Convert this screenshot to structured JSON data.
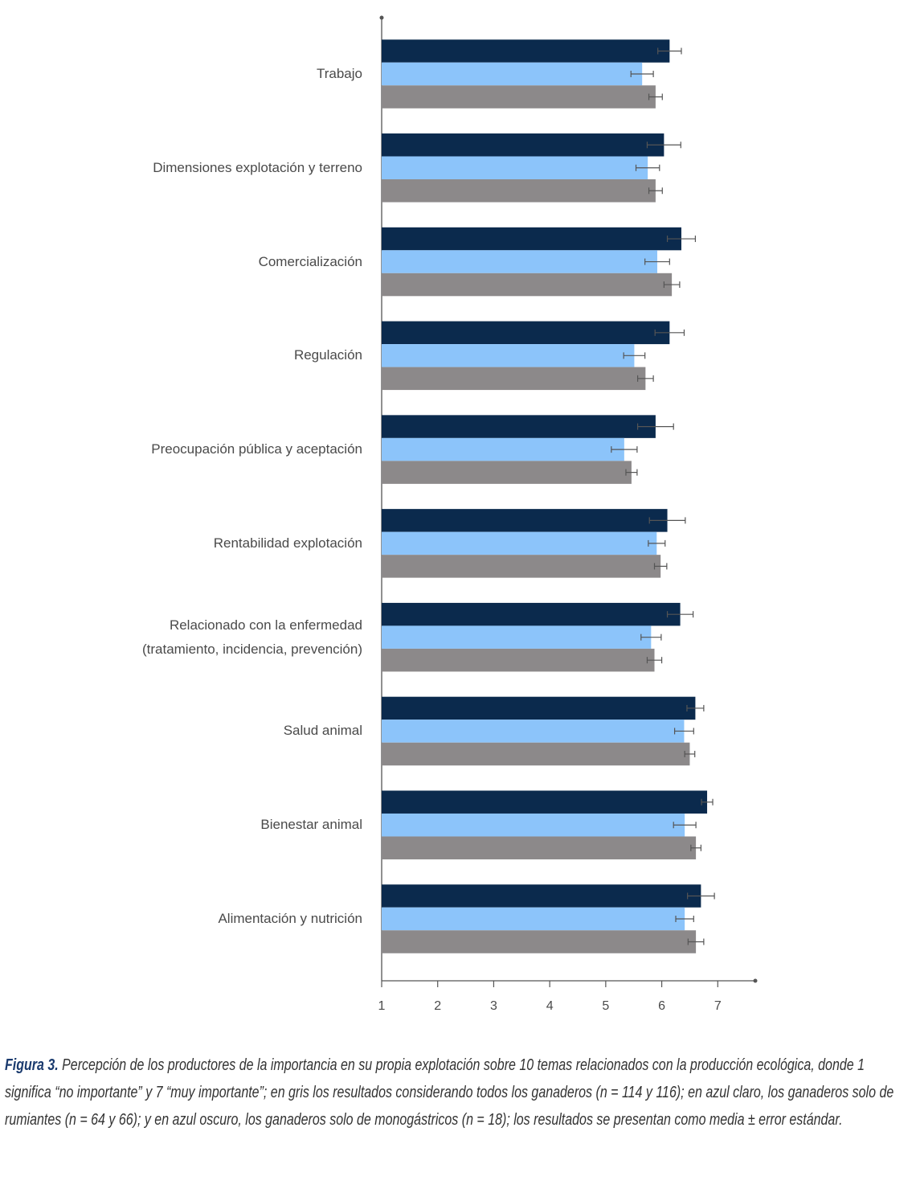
{
  "chart_data": {
    "type": "bar",
    "orientation": "horizontal",
    "categories": [
      "Trabajo",
      "Dimensiones explotación y terreno",
      "Comercialización",
      "Regulación",
      "Preocupación pública y aceptación",
      "Rentabilidad explotación",
      "Relacionado con la enfermedad\n(tratamiento, incidencia, prevención)",
      "Salud animal",
      "Bienestar animal",
      "Alimentación y nutrición"
    ],
    "series": [
      {
        "color": "#0b2a4d",
        "values": [
          6.14,
          6.04,
          6.35,
          6.14,
          5.89,
          6.1,
          6.33,
          6.6,
          6.81,
          6.7
        ],
        "errors": [
          0.21,
          0.3,
          0.25,
          0.26,
          0.32,
          0.32,
          0.23,
          0.15,
          0.1,
          0.24
        ]
      },
      {
        "color": "#8cc4fa",
        "values": [
          5.65,
          5.75,
          5.92,
          5.51,
          5.33,
          5.91,
          5.81,
          6.4,
          6.41,
          6.41
        ],
        "errors": [
          0.2,
          0.21,
          0.22,
          0.19,
          0.23,
          0.15,
          0.18,
          0.17,
          0.2,
          0.16
        ]
      },
      {
        "color": "#8c898a",
        "values": [
          5.89,
          5.89,
          6.18,
          5.71,
          5.46,
          5.98,
          5.87,
          6.5,
          6.61,
          6.61
        ],
        "errors": [
          0.12,
          0.12,
          0.14,
          0.14,
          0.1,
          0.11,
          0.13,
          0.09,
          0.09,
          0.14
        ]
      }
    ],
    "xlim": [
      1,
      7.67
    ],
    "xticks": [
      1,
      2,
      3,
      4,
      5,
      6,
      7
    ]
  },
  "caption": {
    "label": "Figura 3.",
    "text": " Percepción de los productores de la importancia en su propia explotación sobre 10 temas relacionados con la producción ecológica, donde 1 significa “no importante” y 7 “muy importante”; en gris los resultados considerando todos los ganaderos (n = 114 y 116); en azul claro, los ganaderos solo de rumiantes (n = 64 y 66); y en azul oscuro, los ganaderos solo de monogástricos (n = 18); los resultados se presentan como media ± error estándar."
  }
}
